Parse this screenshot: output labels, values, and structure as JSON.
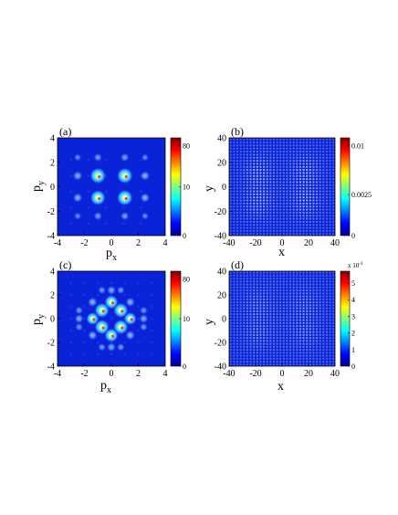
{
  "colors": {
    "background": "#0a22d8",
    "border": "#000000"
  },
  "chart_data": [
    {
      "panel_label": "(a)",
      "type": "heatmap",
      "xlabel": "p",
      "xlabel_sub": "x",
      "ylabel": "p",
      "ylabel_sub": "y",
      "xlim": [
        -4,
        4
      ],
      "ylim": [
        -4,
        4
      ],
      "xticks": [
        "-4",
        "-2",
        "0",
        "2",
        "4"
      ],
      "yticks": [
        "4",
        "2",
        "0",
        "-2",
        "-4"
      ],
      "colorbar": {
        "ticks": [
          "80",
          "10",
          "0"
        ],
        "tick_fractions": [
          0.92,
          0.5,
          0.0
        ],
        "multiplier": ""
      },
      "features": {
        "kind": "momentum-peaks",
        "grid_step": 1.3,
        "peaks": [
          [
            -1.0,
            0.9,
            1
          ],
          [
            1.0,
            0.9,
            1
          ],
          [
            -1.0,
            -0.9,
            0.95
          ],
          [
            1.0,
            -0.9,
            1
          ],
          [
            -2.5,
            0.9,
            0.45
          ],
          [
            2.5,
            0.9,
            0.45
          ],
          [
            -2.5,
            -0.9,
            0.45
          ],
          [
            2.5,
            -0.9,
            0.45
          ],
          [
            -1.0,
            2.4,
            0.35
          ],
          [
            1.0,
            2.4,
            0.35
          ],
          [
            -1.0,
            -2.4,
            0.35
          ],
          [
            1.0,
            -2.4,
            0.35
          ],
          [
            -2.5,
            2.4,
            0.25
          ],
          [
            2.5,
            2.4,
            0.25
          ],
          [
            -2.5,
            -2.4,
            0.25
          ],
          [
            2.5,
            -2.4,
            0.25
          ]
        ]
      }
    },
    {
      "panel_label": "(b)",
      "type": "heatmap",
      "xlabel": "x",
      "xlabel_sub": "",
      "ylabel": "y",
      "ylabel_sub": "",
      "xlim": [
        -40,
        40
      ],
      "ylim": [
        -40,
        40
      ],
      "xticks": [
        "-40",
        "-20",
        "0",
        "20",
        "40"
      ],
      "yticks": [
        "40",
        "20",
        "0",
        "-20",
        "-40"
      ],
      "colorbar": {
        "ticks": [
          "0.01",
          "0.0025",
          "0"
        ],
        "tick_fractions": [
          0.92,
          0.42,
          0.0
        ],
        "multiplier": ""
      },
      "features": {
        "kind": "lattice",
        "spacing": 2.5,
        "extent": 40
      }
    },
    {
      "panel_label": "(c)",
      "type": "heatmap",
      "xlabel": "p",
      "xlabel_sub": "x",
      "ylabel": "p",
      "ylabel_sub": "y",
      "xlim": [
        -4,
        4
      ],
      "ylim": [
        -4,
        4
      ],
      "xticks": [
        "-4",
        "-2",
        "0",
        "2",
        "4"
      ],
      "yticks": [
        "4",
        "2",
        "0",
        "-2",
        "-4"
      ],
      "colorbar": {
        "ticks": [
          "80",
          "10",
          "0"
        ],
        "tick_fractions": [
          0.92,
          0.5,
          0.0
        ],
        "multiplier": ""
      },
      "features": {
        "kind": "momentum-peaks",
        "grid_step": 1.0,
        "peaks": [
          [
            -0.7,
            0.7,
            0.9
          ],
          [
            0.7,
            0.7,
            0.9
          ],
          [
            -0.7,
            -0.7,
            0.9
          ],
          [
            0.7,
            -0.7,
            0.9
          ],
          [
            0,
            1.4,
            0.8
          ],
          [
            0,
            -1.4,
            0.8
          ],
          [
            -1.4,
            0,
            0.7
          ],
          [
            1.4,
            0,
            0.7
          ],
          [
            -1.4,
            1.4,
            0.45
          ],
          [
            1.4,
            1.4,
            0.45
          ],
          [
            -1.4,
            -1.4,
            0.45
          ],
          [
            1.4,
            -1.4,
            0.45
          ],
          [
            0,
            2.4,
            0.4
          ],
          [
            0,
            -2.4,
            0.4
          ],
          [
            -2.4,
            0,
            0.4
          ],
          [
            2.4,
            0,
            0.4
          ],
          [
            -0.7,
            2.4,
            0.3
          ],
          [
            0.7,
            2.4,
            0.3
          ],
          [
            -0.7,
            -2.4,
            0.3
          ],
          [
            0.7,
            -2.4,
            0.3
          ],
          [
            -2.4,
            0.7,
            0.3
          ],
          [
            2.4,
            0.7,
            0.3
          ],
          [
            -2.4,
            -0.7,
            0.3
          ],
          [
            2.4,
            -0.7,
            0.3
          ]
        ]
      }
    },
    {
      "panel_label": "(d)",
      "type": "heatmap",
      "xlabel": "x",
      "xlabel_sub": "",
      "ylabel": "y",
      "ylabel_sub": "",
      "xlim": [
        -40,
        40
      ],
      "ylim": [
        -40,
        40
      ],
      "xticks": [
        "-40",
        "-20",
        "0",
        "20",
        "40"
      ],
      "yticks": [
        "40",
        "20",
        "0",
        "-20",
        "-40"
      ],
      "colorbar": {
        "ticks": [
          "5",
          "4",
          "3",
          "2",
          "1",
          "0"
        ],
        "tick_fractions": [
          0.875,
          0.7,
          0.525,
          0.35,
          0.175,
          0.0
        ],
        "multiplier": "x 10",
        "multiplier_exp": "-3"
      },
      "features": {
        "kind": "lattice",
        "spacing": 2.5,
        "extent": 40
      }
    }
  ]
}
